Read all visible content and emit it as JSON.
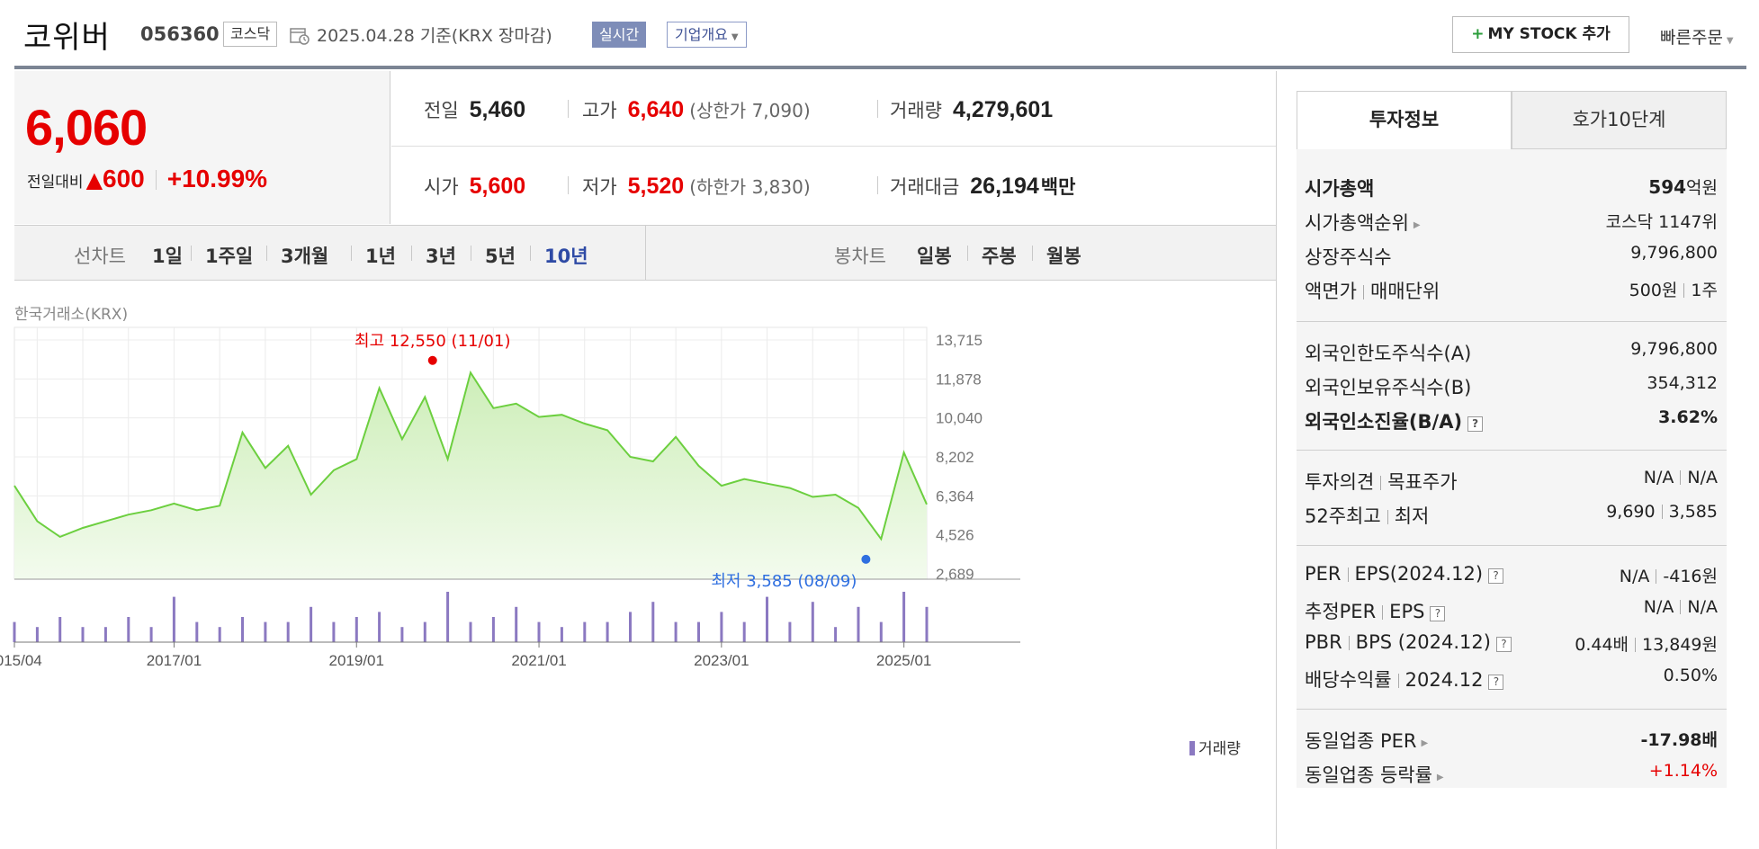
{
  "header": {
    "company_name": "코위버",
    "stock_code": "056360",
    "market_badge": "코스닥",
    "date_text": "2025.04.28  기준(KRX 장마감)",
    "realtime_label": "실시간",
    "overview_label": "기업개요",
    "my_stock_label": "MY STOCK 추가",
    "quick_order_label": "빠른주문"
  },
  "price": {
    "current": "6,060",
    "change_label": "전일대비",
    "change_amount": "600",
    "change_pct": "+10.99%"
  },
  "summary": {
    "prev_close_label": "전일",
    "prev_close": "5,460",
    "high_label": "고가",
    "high": "6,640",
    "upper_limit": "(상한가 7,090)",
    "volume_label": "거래량",
    "volume": "4,279,601",
    "open_label": "시가",
    "open": "5,600",
    "low_label": "저가",
    "low": "5,520",
    "lower_limit": "(하한가 3,830)",
    "trade_value_label": "거래대금",
    "trade_value": "26,194",
    "trade_value_unit": "백만"
  },
  "chart_tabs": {
    "line_title": "선차트",
    "line_items": [
      "1일",
      "1주일",
      "3개월",
      "1년",
      "3년",
      "5년",
      "10년"
    ],
    "active_period": "10년",
    "candle_title": "봉차트",
    "candle_items": [
      "일봉",
      "주봉",
      "월봉"
    ]
  },
  "chart": {
    "exchange_label": "한국거래소(KRX)",
    "volume_legend": "거래량",
    "max_annotation": "최고 12,550 (11/01)",
    "min_annotation": "최저 3,585 (08/09)",
    "y_ticks": [
      "13,715",
      "11,878",
      "10,040",
      "8,202",
      "6,364",
      "4,526",
      "2,689"
    ],
    "x_ticks": [
      "2015/04",
      "2017/01",
      "2019/01",
      "2021/01",
      "2023/01",
      "2025/01"
    ],
    "colors": {
      "line": "#6ccf3f",
      "fill_top": "#cdeeb8",
      "fill_bottom": "#f3fbee",
      "volume": "#8b79c1",
      "max_dot": "#e60000",
      "min_dot": "#2f6fe0"
    }
  },
  "chart_data": {
    "type": "area",
    "title": "",
    "xlabel": "",
    "ylabel": "",
    "ylim": [
      2689,
      13715
    ],
    "x": [
      "2015/04",
      "2015/07",
      "2015/10",
      "2016/01",
      "2016/04",
      "2016/07",
      "2016/10",
      "2017/01",
      "2017/04",
      "2017/07",
      "2017/10",
      "2018/01",
      "2018/04",
      "2018/07",
      "2018/10",
      "2019/01",
      "2019/04",
      "2019/07",
      "2019/10",
      "2020/01",
      "2020/04",
      "2020/07",
      "2020/10",
      "2021/01",
      "2021/04",
      "2021/07",
      "2021/10",
      "2022/01",
      "2022/04",
      "2022/07",
      "2022/10",
      "2023/01",
      "2023/04",
      "2023/07",
      "2023/10",
      "2024/01",
      "2024/04",
      "2024/07",
      "2024/10",
      "2025/01",
      "2025/04"
    ],
    "series": [
      {
        "values": [
          6900,
          5300,
          4600,
          5000,
          5300,
          5600,
          5800,
          6100,
          5800,
          6000,
          9300,
          7700,
          8700,
          6500,
          7600,
          8100,
          11300,
          9000,
          10900,
          8100,
          12000,
          10400,
          10600,
          10000,
          10100,
          9700,
          9400,
          8200,
          8000,
          9100,
          7800,
          6900,
          7200,
          7000,
          6800,
          6400,
          6500,
          5900,
          4500,
          8400,
          6060
        ]
      }
    ],
    "volume": [
      4,
      3,
      5,
      3,
      3,
      5,
      3,
      9,
      4,
      3,
      5,
      4,
      4,
      7,
      4,
      5,
      6,
      3,
      4,
      10,
      4,
      5,
      7,
      4,
      3,
      4,
      4,
      6,
      8,
      4,
      4,
      6,
      4,
      9,
      4,
      8,
      3,
      7,
      4,
      10,
      7
    ],
    "annotations": [
      {
        "label": "최고 12,550 (11/01)",
        "x": "2019/11",
        "y": 12550
      },
      {
        "label": "최저 3,585 (08/09)",
        "x": "2024/08",
        "y": 3585
      }
    ]
  },
  "info_tabs": {
    "investment": "투자정보",
    "hoga": "호가10단계"
  },
  "info": {
    "market_cap_label": "시가총액",
    "market_cap": "594",
    "market_cap_unit": "억원",
    "rank_label": "시가총액순위",
    "rank": "코스닥 1147위",
    "shares_label": "상장주식수",
    "shares": "9,796,800",
    "par_label": "액면가",
    "unit_label": "매매단위",
    "par": "500원",
    "unit": "1주",
    "foreign_limit_label": "외국인한도주식수(A)",
    "foreign_limit": "9,796,800",
    "foreign_hold_label": "외국인보유주식수(B)",
    "foreign_hold": "354,312",
    "foreign_ratio_label": "외국인소진율(B/A)",
    "foreign_ratio": "3.62%",
    "opinion_label": "투자의견",
    "target_label": "목표주가",
    "opinion": "N/A",
    "target": "N/A",
    "w52_high_label": "52주최고",
    "w52_low_label": "최저",
    "w52_high": "9,690",
    "w52_low": "3,585",
    "per_label": "PER",
    "eps_label": "EPS(2024.12)",
    "per": "N/A",
    "eps": "-416원",
    "est_per_label": "추정PER",
    "est_eps_label": "EPS",
    "est_per": "N/A",
    "est_eps": "N/A",
    "pbr_label": "PBR",
    "bps_label": "BPS (2024.12)",
    "pbr": "0.44배",
    "bps": "13,849원",
    "dividend_label": "배당수익률",
    "dividend_date": "2024.12",
    "dividend": "0.50%",
    "sector_per_label": "동일업종 PER",
    "sector_per": "-17.98배",
    "sector_change_label": "동일업종 등락률",
    "sector_change": "+1.14%"
  }
}
